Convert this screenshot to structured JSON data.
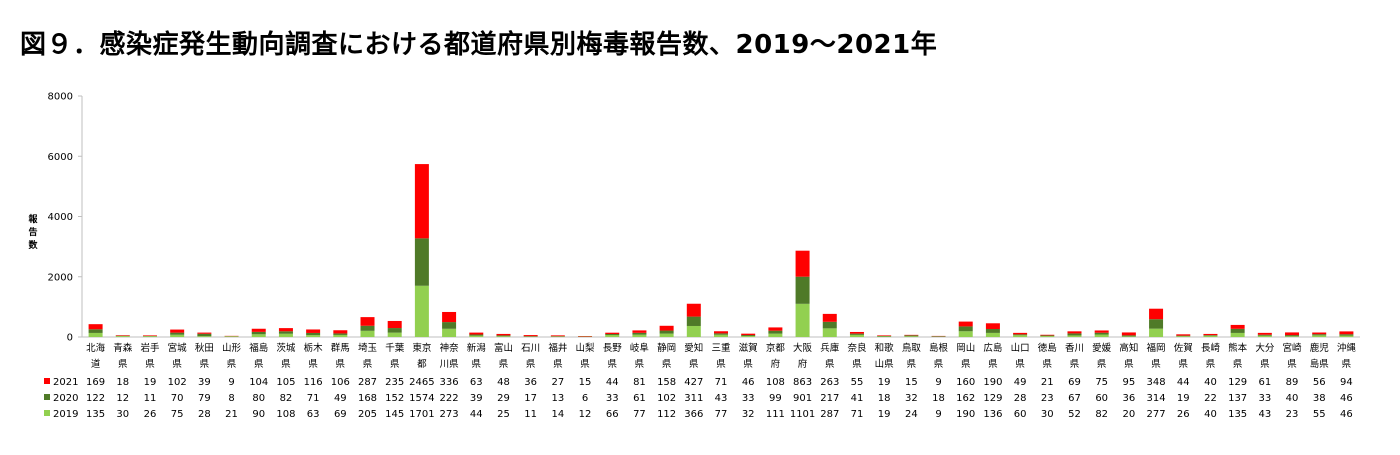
{
  "title": "図９．感染症発生動向調査における都道府県別梅毒報告数、2019～2021年",
  "chart_data": {
    "type": "bar",
    "stacked": true,
    "title": "図９．感染症発生動向調査における都道府県別梅毒報告数、2019～2021年",
    "ylabel": "報告数",
    "ylim": [
      0,
      8000
    ],
    "yticks": [
      "0",
      "2000",
      "4000",
      "6000",
      "8000"
    ],
    "categories": [
      [
        "北海",
        "道"
      ],
      [
        "青森",
        "県"
      ],
      [
        "岩手",
        "県"
      ],
      [
        "宮城",
        "県"
      ],
      [
        "秋田",
        "県"
      ],
      [
        "山形",
        "県"
      ],
      [
        "福島",
        "県"
      ],
      [
        "茨城",
        "県"
      ],
      [
        "栃木",
        "県"
      ],
      [
        "群馬",
        "県"
      ],
      [
        "埼玉",
        "県"
      ],
      [
        "千葉",
        "県"
      ],
      [
        "東京",
        "都"
      ],
      [
        "神奈",
        "川県"
      ],
      [
        "新潟",
        "県"
      ],
      [
        "富山",
        "県"
      ],
      [
        "石川",
        "県"
      ],
      [
        "福井",
        "県"
      ],
      [
        "山梨",
        "県"
      ],
      [
        "長野",
        "県"
      ],
      [
        "岐阜",
        "県"
      ],
      [
        "静岡",
        "県"
      ],
      [
        "愛知",
        "県"
      ],
      [
        "三重",
        "県"
      ],
      [
        "滋賀",
        "県"
      ],
      [
        "京都",
        "府"
      ],
      [
        "大阪",
        "府"
      ],
      [
        "兵庫",
        "県"
      ],
      [
        "奈良",
        "県"
      ],
      [
        "和歌",
        "山県"
      ],
      [
        "鳥取",
        "県"
      ],
      [
        "島根",
        "県"
      ],
      [
        "岡山",
        "県"
      ],
      [
        "広島",
        "県"
      ],
      [
        "山口",
        "県"
      ],
      [
        "徳島",
        "県"
      ],
      [
        "香川",
        "県"
      ],
      [
        "愛媛",
        "県"
      ],
      [
        "高知",
        "県"
      ],
      [
        "福岡",
        "県"
      ],
      [
        "佐賀",
        "県"
      ],
      [
        "長崎",
        "県"
      ],
      [
        "熊本",
        "県"
      ],
      [
        "大分",
        "県"
      ],
      [
        "宮崎",
        "県"
      ],
      [
        "鹿児",
        "島県"
      ],
      [
        "沖縄",
        "県"
      ]
    ],
    "series": [
      {
        "name": "2021",
        "color": "#ff0000",
        "values": [
          169,
          18,
          19,
          102,
          39,
          9,
          104,
          105,
          116,
          106,
          287,
          235,
          2465,
          336,
          63,
          48,
          36,
          27,
          15,
          44,
          81,
          158,
          427,
          71,
          46,
          108,
          863,
          263,
          55,
          19,
          15,
          9,
          160,
          190,
          49,
          21,
          69,
          75,
          95,
          348,
          44,
          40,
          129,
          61,
          89,
          56,
          94
        ]
      },
      {
        "name": "2020",
        "color": "#4f7a28",
        "values": [
          122,
          12,
          11,
          70,
          79,
          8,
          80,
          82,
          71,
          49,
          168,
          152,
          1574,
          222,
          39,
          29,
          17,
          13,
          6,
          33,
          61,
          102,
          311,
          43,
          33,
          99,
          901,
          217,
          41,
          18,
          32,
          18,
          162,
          129,
          28,
          23,
          67,
          60,
          36,
          314,
          19,
          22,
          137,
          33,
          40,
          38,
          46
        ]
      },
      {
        "name": "2019",
        "color": "#92d050",
        "values": [
          135,
          30,
          26,
          75,
          28,
          21,
          90,
          108,
          63,
          69,
          205,
          145,
          1701,
          273,
          44,
          25,
          11,
          14,
          12,
          66,
          77,
          112,
          366,
          77,
          32,
          111,
          1101,
          287,
          71,
          19,
          24,
          9,
          190,
          136,
          60,
          30,
          52,
          82,
          20,
          277,
          26,
          40,
          135,
          43,
          23,
          55,
          46
        ]
      }
    ],
    "stack_order": [
      "2019",
      "2020",
      "2021"
    ],
    "table_row_order": [
      "2021",
      "2020",
      "2019"
    ],
    "legend": "data-table",
    "grid": false
  }
}
